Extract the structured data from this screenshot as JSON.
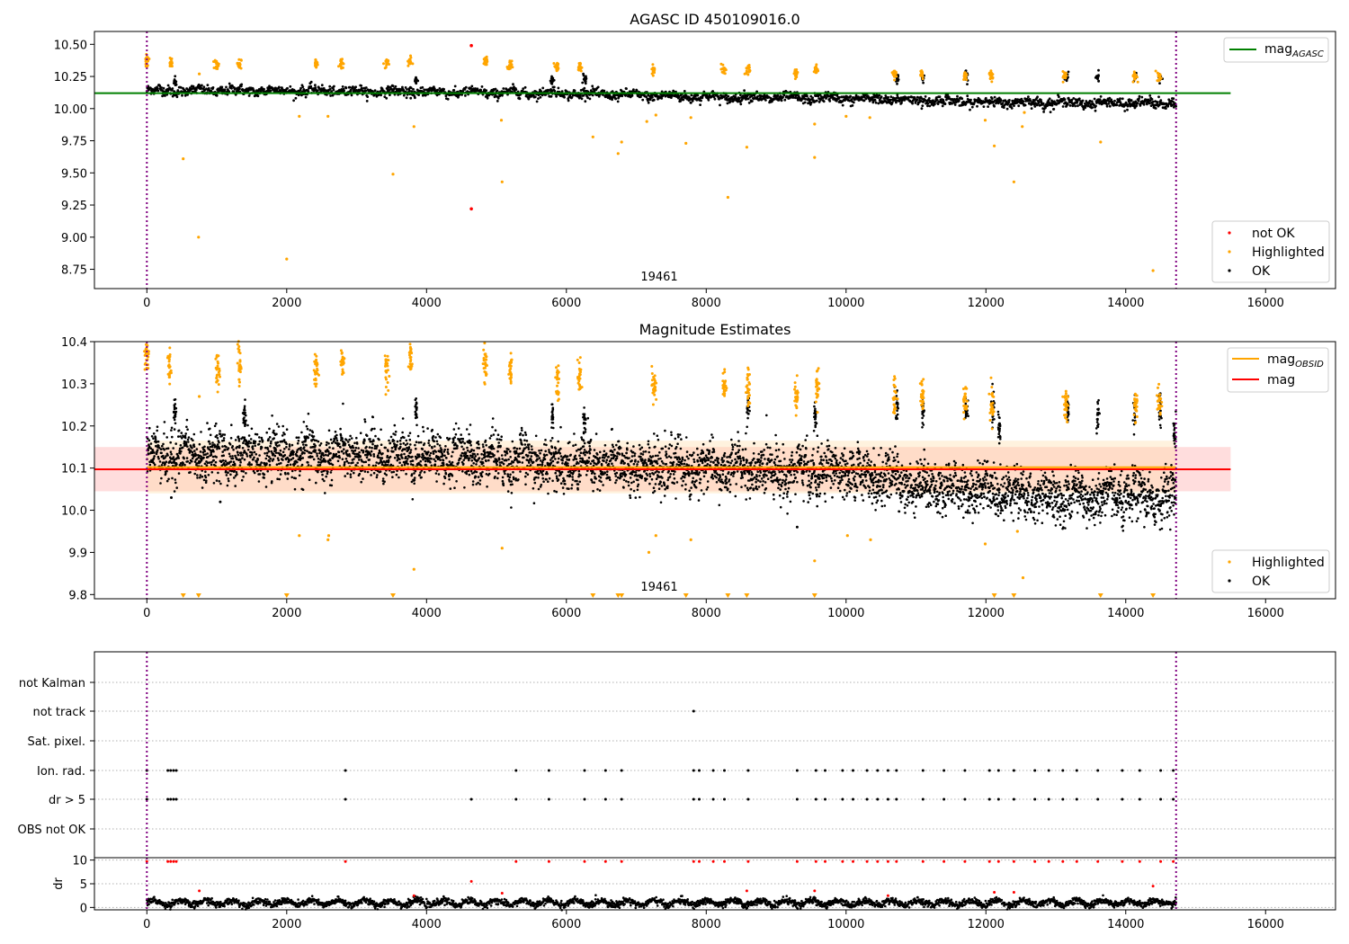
{
  "colors": {
    "ok": "#000000",
    "highlighted": "#ffa500",
    "not_ok": "#ff0000",
    "agasc_line": "#008000",
    "mag_line": "#ff0000",
    "mag_obsid_line": "#ffa500",
    "band": "#ffb3b3",
    "obs_band": "#ffd9a0",
    "vline": "#800080"
  },
  "chart_data": [
    {
      "type": "scatter",
      "title": "AGASC ID 450109016.0",
      "xlim": [
        -750,
        17000
      ],
      "ylim": [
        8.6,
        10.6
      ],
      "xticks": [
        0,
        2000,
        4000,
        6000,
        8000,
        10000,
        12000,
        14000,
        16000
      ],
      "yticks": [
        8.75,
        9.0,
        9.25,
        9.5,
        9.75,
        10.0,
        10.25,
        10.5
      ],
      "ytick_labels": [
        "8.75",
        "9.00",
        "9.25",
        "9.50",
        "9.75",
        "10.00",
        "10.25",
        "10.50"
      ],
      "vlines": [
        0,
        14720
      ],
      "annotation": {
        "text": "19461",
        "x": 7350
      },
      "lines": [
        {
          "name": "mag",
          "subscript": "AGASC",
          "y": 10.12,
          "x": [
            -750,
            15500
          ]
        }
      ],
      "legend_top": [
        "mag_AGASC"
      ],
      "legend_bottom": [
        {
          "label": "not OK",
          "key": "not_ok"
        },
        {
          "label": "Highlighted",
          "key": "highlighted"
        },
        {
          "label": "OK",
          "key": "ok"
        }
      ],
      "ok_trend": {
        "x": [
          0,
          2000,
          4000,
          6000,
          8000,
          10000,
          12000,
          14720
        ],
        "y": [
          10.14,
          10.14,
          10.13,
          10.12,
          10.09,
          10.08,
          10.05,
          10.04
        ]
      },
      "highlighted_clusters": [
        {
          "x": 0,
          "y": 10.37
        },
        {
          "x": 350,
          "y": 10.36
        },
        {
          "x": 1000,
          "y": 10.34
        },
        {
          "x": 1320,
          "y": 10.35
        },
        {
          "x": 2420,
          "y": 10.35
        },
        {
          "x": 2780,
          "y": 10.36
        },
        {
          "x": 3420,
          "y": 10.35
        },
        {
          "x": 3760,
          "y": 10.37
        },
        {
          "x": 4840,
          "y": 10.36
        },
        {
          "x": 5190,
          "y": 10.33
        },
        {
          "x": 5860,
          "y": 10.32
        },
        {
          "x": 6190,
          "y": 10.32
        },
        {
          "x": 7250,
          "y": 10.3
        },
        {
          "x": 8250,
          "y": 10.31
        },
        {
          "x": 8600,
          "y": 10.3
        },
        {
          "x": 9280,
          "y": 10.28
        },
        {
          "x": 9570,
          "y": 10.3
        },
        {
          "x": 10700,
          "y": 10.27
        },
        {
          "x": 11080,
          "y": 10.27
        },
        {
          "x": 11700,
          "y": 10.26
        },
        {
          "x": 12080,
          "y": 10.26
        },
        {
          "x": 13130,
          "y": 10.25
        },
        {
          "x": 14130,
          "y": 10.25
        },
        {
          "x": 14480,
          "y": 10.25
        }
      ],
      "highlighted_outliers": [
        [
          520,
          9.61
        ],
        [
          740,
          9.0
        ],
        [
          750,
          10.27
        ],
        [
          2000,
          8.83
        ],
        [
          2180,
          9.94
        ],
        [
          2590,
          9.94
        ],
        [
          3520,
          9.49
        ],
        [
          3820,
          9.86
        ],
        [
          5080,
          9.43
        ],
        [
          5070,
          9.91
        ],
        [
          6380,
          9.78
        ],
        [
          6790,
          9.74
        ],
        [
          6740,
          9.65
        ],
        [
          7150,
          9.9
        ],
        [
          7710,
          9.73
        ],
        [
          7780,
          9.93
        ],
        [
          8580,
          9.7
        ],
        [
          8310,
          9.31
        ],
        [
          9550,
          9.62
        ],
        [
          9550,
          9.88
        ],
        [
          10000,
          9.94
        ],
        [
          10340,
          9.93
        ],
        [
          11990,
          9.91
        ],
        [
          12120,
          9.71
        ],
        [
          12400,
          9.43
        ],
        [
          12520,
          9.86
        ],
        [
          13640,
          9.74
        ],
        [
          14390,
          8.74
        ],
        [
          7280,
          9.95
        ],
        [
          12550,
          9.97
        ]
      ],
      "not_ok_points": [
        [
          4640,
          10.49
        ],
        [
          4640,
          9.22
        ]
      ]
    },
    {
      "type": "scatter",
      "title": "Magnitude Estimates",
      "xlim": [
        -750,
        17000
      ],
      "ylim": [
        9.79,
        10.4
      ],
      "xticks": [
        0,
        2000,
        4000,
        6000,
        8000,
        10000,
        12000,
        14000,
        16000
      ],
      "yticks": [
        9.8,
        9.9,
        10.0,
        10.1,
        10.2,
        10.3,
        10.4
      ],
      "ytick_labels": [
        "9.8",
        "9.9",
        "10.0",
        "10.1",
        "10.2",
        "10.3",
        "10.4"
      ],
      "vlines": [
        0,
        14720
      ],
      "annotation": {
        "text": "19461",
        "x": 7350
      },
      "lines": [
        {
          "name": "mag",
          "subscript": "OBSID",
          "y": 10.102,
          "x": [
            0,
            14720
          ],
          "color_key": "mag_obsid_line"
        },
        {
          "name": "mag",
          "subscript": "",
          "y": 10.097,
          "x": [
            -750,
            15500
          ],
          "color_key": "mag_line"
        }
      ],
      "band": {
        "y0": 10.045,
        "y1": 10.15,
        "x": [
          -750,
          15500
        ]
      },
      "legend_top": [
        "mag_OBSID",
        "mag"
      ],
      "legend_bottom": [
        {
          "label": "Highlighted",
          "key": "highlighted"
        },
        {
          "label": "OK",
          "key": "ok"
        }
      ],
      "ok_trend": {
        "x": [
          0,
          2000,
          4000,
          6000,
          8000,
          10000,
          11000,
          12000,
          13000,
          14720
        ],
        "y": [
          10.13,
          10.13,
          10.13,
          10.11,
          10.1,
          10.09,
          10.06,
          10.05,
          10.03,
          10.03
        ]
      },
      "ok_spikes": [
        [
          400,
          10.24
        ],
        [
          1400,
          10.22
        ],
        [
          3850,
          10.24
        ],
        [
          5800,
          10.23
        ],
        [
          6260,
          10.21
        ],
        [
          8600,
          10.24
        ],
        [
          9560,
          10.22
        ],
        [
          10730,
          10.25
        ],
        [
          11100,
          10.24
        ],
        [
          11720,
          10.24
        ],
        [
          12100,
          10.25
        ],
        [
          12190,
          10.19
        ],
        [
          13170,
          10.24
        ],
        [
          13600,
          10.23
        ],
        [
          14130,
          10.24
        ],
        [
          14490,
          10.24
        ],
        [
          14700,
          10.18
        ]
      ],
      "highlighted_clusters": [
        {
          "x": 0,
          "y": 10.37
        },
        {
          "x": 320,
          "y": 10.34
        },
        {
          "x": 1010,
          "y": 10.33
        },
        {
          "x": 1320,
          "y": 10.35
        },
        {
          "x": 2420,
          "y": 10.33
        },
        {
          "x": 2800,
          "y": 10.35
        },
        {
          "x": 3420,
          "y": 10.34
        },
        {
          "x": 3770,
          "y": 10.36
        },
        {
          "x": 4840,
          "y": 10.35
        },
        {
          "x": 5200,
          "y": 10.33
        },
        {
          "x": 5870,
          "y": 10.3
        },
        {
          "x": 6190,
          "y": 10.31
        },
        {
          "x": 7250,
          "y": 10.3
        },
        {
          "x": 8260,
          "y": 10.3
        },
        {
          "x": 8600,
          "y": 10.29
        },
        {
          "x": 9290,
          "y": 10.27
        },
        {
          "x": 9590,
          "y": 10.3
        },
        {
          "x": 10700,
          "y": 10.27
        },
        {
          "x": 11090,
          "y": 10.27
        },
        {
          "x": 11700,
          "y": 10.26
        },
        {
          "x": 12080,
          "y": 10.26
        },
        {
          "x": 13140,
          "y": 10.25
        },
        {
          "x": 14140,
          "y": 10.25
        },
        {
          "x": 14480,
          "y": 10.26
        }
      ],
      "highlighted_outliers": [
        [
          750,
          10.27
        ],
        [
          1320,
          10.31
        ],
        [
          2180,
          9.94
        ],
        [
          2590,
          9.93
        ],
        [
          2600,
          9.94
        ],
        [
          3820,
          9.86
        ],
        [
          5080,
          9.91
        ],
        [
          7180,
          9.9
        ],
        [
          7280,
          9.94
        ],
        [
          7780,
          9.93
        ],
        [
          9550,
          9.88
        ],
        [
          10020,
          9.94
        ],
        [
          10350,
          9.93
        ],
        [
          11990,
          9.92
        ],
        [
          12530,
          9.84
        ],
        [
          12450,
          9.95
        ]
      ],
      "clipped_markers_x": [
        520,
        740,
        2000,
        3520,
        6380,
        6740,
        6790,
        7710,
        8310,
        8580,
        9550,
        12120,
        12400,
        13640,
        14390
      ],
      "ok_outliers": [
        [
          350,
          10.03
        ],
        [
          1050,
          10.02
        ],
        [
          9300,
          9.96
        ]
      ]
    },
    {
      "type": "scatter",
      "title": "",
      "xlim": [
        -750,
        17000
      ],
      "flag_labels": [
        "not Kalman",
        "not track",
        "Sat. pixel.",
        "Ion. rad.",
        "dr > 5",
        "OBS not OK"
      ],
      "flag_points": {
        "not track": [
          7820
        ],
        "Ion. rad.": [
          0,
          300,
          340,
          380,
          420,
          2840,
          5280,
          5750,
          6260,
          6560,
          6790,
          7820,
          7900,
          8100,
          8260,
          8600,
          9300,
          9570,
          9700,
          9950,
          10100,
          10300,
          10450,
          10600,
          10720,
          11100,
          11400,
          11700,
          12050,
          12180,
          12400,
          12700,
          12900,
          13100,
          13300,
          13600,
          13950,
          14200,
          14500,
          14680
        ],
        "dr > 5": [
          0,
          300,
          340,
          380,
          420,
          2840,
          4640,
          5280,
          5750,
          6260,
          6560,
          6790,
          7820,
          7900,
          8100,
          8260,
          8600,
          9300,
          9570,
          9700,
          9950,
          10100,
          10300,
          10450,
          10600,
          10720,
          11100,
          11400,
          11700,
          12050,
          12180,
          12400,
          12700,
          12900,
          13100,
          13300,
          13600,
          13950,
          14200,
          14500,
          14680
        ]
      }
    },
    {
      "type": "scatter",
      "title": "",
      "xlim": [
        -750,
        17000
      ],
      "ylim": [
        -0.5,
        10.5
      ],
      "ylabel": "dr",
      "xticks": [
        0,
        2000,
        4000,
        6000,
        8000,
        10000,
        12000,
        14000,
        16000
      ],
      "yticks": [
        0,
        5,
        10
      ],
      "ytick_labels": [
        "0",
        "5",
        "10"
      ],
      "vlines": [
        0,
        14720
      ],
      "baseline": 1.0,
      "red_top_x": [
        0,
        300,
        340,
        380,
        420,
        2840,
        5280,
        5750,
        6260,
        6560,
        6790,
        7820,
        7900,
        8100,
        8260,
        8600,
        9300,
        9570,
        9700,
        9950,
        10100,
        10300,
        10450,
        10600,
        10720,
        11100,
        11400,
        11700,
        12050,
        12180,
        12400,
        12700,
        12900,
        13100,
        13300,
        13600,
        13950,
        14200,
        14500,
        14680
      ],
      "red_mid": [
        [
          750,
          3.5
        ],
        [
          4640,
          5.5
        ],
        [
          5080,
          3.0
        ],
        [
          8580,
          3.5
        ],
        [
          9550,
          3.5
        ],
        [
          10600,
          2.5
        ],
        [
          12120,
          3.2
        ],
        [
          12400,
          3.2
        ],
        [
          14390,
          4.5
        ],
        [
          3820,
          2.5
        ]
      ]
    }
  ]
}
